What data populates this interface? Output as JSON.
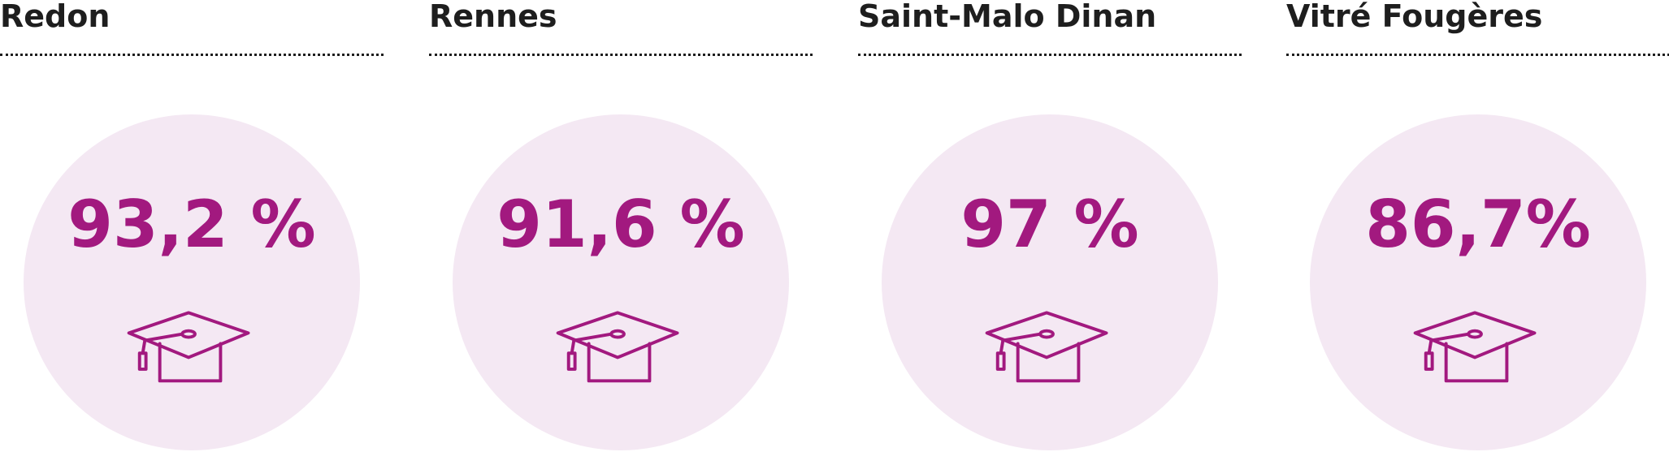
{
  "cards": [
    {
      "title": "Redon",
      "value": "93,2 %"
    },
    {
      "title": "Rennes",
      "value": "91,6 %"
    },
    {
      "title": "Saint-Malo Dinan",
      "value": "97 %"
    },
    {
      "title": "Vitré Fougères",
      "value": "86,7%"
    }
  ]
}
